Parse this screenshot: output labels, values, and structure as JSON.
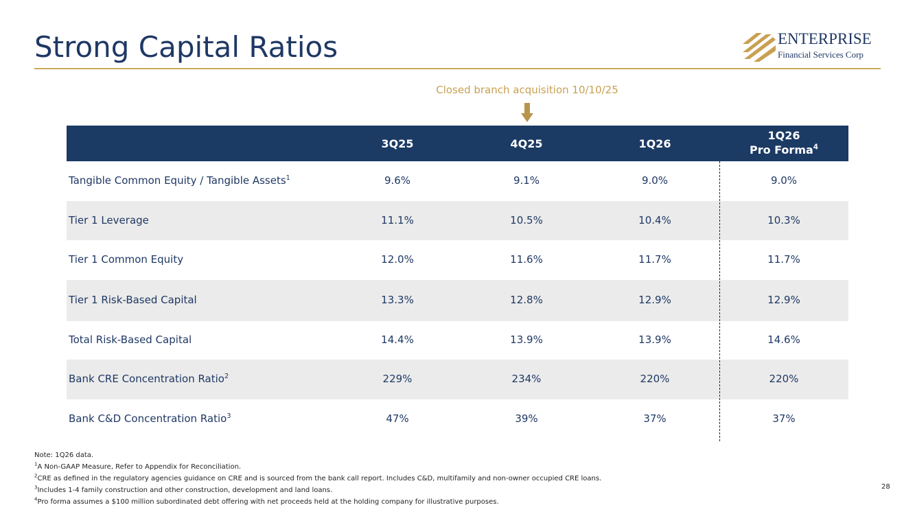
{
  "header": {
    "title": "Strong Capital Ratios",
    "logo": {
      "name": "ENTERPRISE",
      "subtitle": "Financial Services Corp"
    }
  },
  "annotation": "Closed branch acquisition 10/10/25",
  "table": {
    "columns": [
      {
        "label": "3Q25"
      },
      {
        "label": "4Q25"
      },
      {
        "label": "1Q26"
      },
      {
        "label": "1Q26",
        "label2": "Pro Forma",
        "sup": "4"
      }
    ],
    "rows": [
      {
        "label": "Tangible Common Equity / Tangible Assets",
        "sup": "1",
        "values": [
          "9.6%",
          "9.1%",
          "9.0%",
          "9.0%"
        ]
      },
      {
        "label": "Tier 1 Leverage",
        "values": [
          "11.1%",
          "10.5%",
          "10.4%",
          "10.3%"
        ]
      },
      {
        "label": "Tier 1 Common Equity",
        "values": [
          "12.0%",
          "11.6%",
          "11.7%",
          "11.7%"
        ]
      },
      {
        "label": "Tier 1 Risk-Based Capital",
        "values": [
          "13.3%",
          "12.8%",
          "12.9%",
          "12.9%"
        ]
      },
      {
        "label": "Total Risk-Based Capital",
        "values": [
          "14.4%",
          "13.9%",
          "13.9%",
          "14.6%"
        ]
      },
      {
        "label": "Bank CRE Concentration Ratio",
        "sup": "2",
        "values": [
          "229%",
          "234%",
          "220%",
          "220%"
        ]
      },
      {
        "label": "Bank C&D Concentration Ratio",
        "sup": "3",
        "values": [
          "47%",
          "39%",
          "37%",
          "37%"
        ]
      }
    ]
  },
  "footnotes": [
    {
      "text": "Note: 1Q26 data."
    },
    {
      "sup": "1",
      "text": "A Non-GAAP Measure, Refer to Appendix for Reconciliation."
    },
    {
      "sup": "2",
      "text": "CRE as defined in the regulatory agencies guidance on CRE and is sourced from the bank call report. Includes C&D, multifamily and non-owner occupied CRE loans."
    },
    {
      "sup": "3",
      "text": "Includes 1-4 family construction and other construction, development and land loans."
    },
    {
      "sup": "4",
      "text": "Pro forma assumes a $100 million subordinated debt offering with net proceeds held at the holding company for illustrative purposes."
    }
  ],
  "page_number": "28"
}
